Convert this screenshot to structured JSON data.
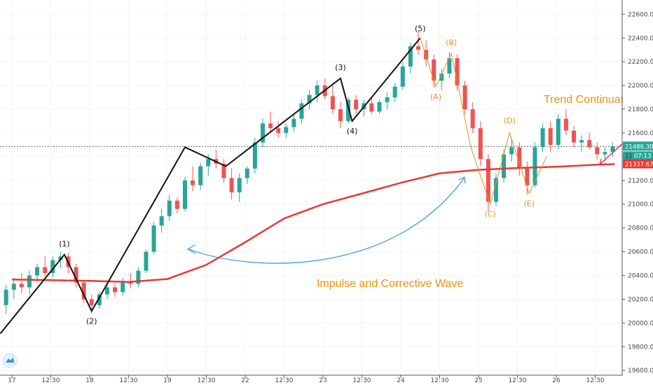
{
  "chart_data": {
    "type": "candlestick",
    "y_axis": {
      "ticks": [
        "22600.00",
        "22400.00",
        "22200.00",
        "22000.00",
        "21800.00",
        "21600.00",
        "21400.00",
        "21200.00",
        "21000.00",
        "20800.00",
        "20600.00",
        "20400.00",
        "20200.00",
        "20000.00",
        "19800.00",
        "19600.00"
      ],
      "tick_values": [
        22600,
        22400,
        22200,
        22000,
        21800,
        21600,
        21400,
        21200,
        21000,
        20800,
        20600,
        20400,
        20200,
        20000,
        19800,
        19600
      ],
      "ylim": [
        19560,
        22720
      ]
    },
    "x_axis": {
      "ticks": [
        "17",
        "12:30",
        "18",
        "12:30",
        "19",
        "12:30",
        "22",
        "12:30",
        "23",
        "12:30",
        "24",
        "12:30",
        "25",
        "12:30",
        "26",
        "12:30"
      ],
      "tick_positions": [
        0,
        1,
        2,
        3,
        4,
        5,
        6,
        7,
        8,
        9,
        10,
        11,
        12,
        13,
        14,
        15
      ]
    },
    "price_tags": {
      "last_price": "21486.30",
      "countdown": "07:13",
      "partial_label": "21",
      "ma_value": "21337.67"
    },
    "current_price": 21486.3,
    "ma_current": 21337.67,
    "moving_average": [
      [
        0,
        20366
      ],
      [
        1,
        20360
      ],
      [
        2,
        20355
      ],
      [
        3,
        20345
      ],
      [
        4,
        20370
      ],
      [
        5,
        20490
      ],
      [
        6,
        20680
      ],
      [
        7,
        20880
      ],
      [
        8,
        21000
      ],
      [
        9,
        21090
      ],
      [
        10,
        21180
      ],
      [
        11,
        21260
      ],
      [
        12,
        21290
      ],
      [
        13,
        21305
      ],
      [
        14,
        21315
      ],
      [
        15,
        21332
      ],
      [
        15.5,
        21337.67
      ]
    ],
    "impulse_wave": [
      [
        -0.3,
        19910
      ],
      [
        1.35,
        20575
      ],
      [
        2.05,
        20100
      ],
      [
        4.45,
        21480
      ],
      [
        5.5,
        21320
      ],
      [
        8.45,
        22060
      ],
      [
        8.75,
        21700
      ],
      [
        10.5,
        22400
      ]
    ],
    "correction_wave": [
      [
        10.5,
        22400
      ],
      [
        10.9,
        21990
      ],
      [
        11.3,
        22270
      ],
      [
        11.8,
        21480
      ],
      [
        12.3,
        21000
      ],
      [
        12.8,
        21600
      ],
      [
        13.3,
        21090
      ],
      [
        13.75,
        21400
      ]
    ],
    "wave_labels_black": [
      "(1)",
      "(2)",
      "(3)",
      "(4)",
      "(5)"
    ],
    "wave_labels_orange": [
      "(A)",
      "(B)",
      "(C)",
      "(D)",
      "(E)"
    ],
    "candles": [
      [
        -0.15,
        20150,
        20320,
        20080,
        20280
      ],
      [
        0.05,
        20280,
        20380,
        20200,
        20330
      ],
      [
        0.25,
        20330,
        20420,
        20250,
        20300
      ],
      [
        0.45,
        20300,
        20440,
        20240,
        20400
      ],
      [
        0.65,
        20400,
        20500,
        20340,
        20470
      ],
      [
        0.85,
        20470,
        20560,
        20390,
        20420
      ],
      [
        1.05,
        20420,
        20560,
        20380,
        20530
      ],
      [
        1.25,
        20530,
        20600,
        20460,
        20560
      ],
      [
        1.45,
        20560,
        20590,
        20420,
        20470
      ],
      [
        1.65,
        20470,
        20500,
        20300,
        20340
      ],
      [
        1.85,
        20340,
        20360,
        20170,
        20200
      ],
      [
        2.05,
        20200,
        20240,
        20080,
        20150
      ],
      [
        2.25,
        20150,
        20270,
        20120,
        20240
      ],
      [
        2.45,
        20240,
        20340,
        20200,
        20300
      ],
      [
        2.65,
        20300,
        20330,
        20220,
        20260
      ],
      [
        2.85,
        20260,
        20380,
        20230,
        20350
      ],
      [
        3.05,
        20350,
        20420,
        20290,
        20330
      ],
      [
        3.25,
        20330,
        20470,
        20300,
        20440
      ],
      [
        3.45,
        20440,
        20620,
        20420,
        20600
      ],
      [
        3.65,
        20600,
        20850,
        20580,
        20820
      ],
      [
        3.85,
        20820,
        20960,
        20760,
        20900
      ],
      [
        4.05,
        20900,
        21080,
        20860,
        21030
      ],
      [
        4.25,
        21030,
        21060,
        20920,
        20960
      ],
      [
        4.45,
        20960,
        21230,
        20940,
        21200
      ],
      [
        4.65,
        21200,
        21320,
        21110,
        21160
      ],
      [
        4.85,
        21160,
        21350,
        21120,
        21320
      ],
      [
        5.05,
        21320,
        21420,
        21240,
        21380
      ],
      [
        5.25,
        21380,
        21460,
        21300,
        21340
      ],
      [
        5.45,
        21340,
        21380,
        21180,
        21220
      ],
      [
        5.65,
        21220,
        21300,
        21040,
        21100
      ],
      [
        5.85,
        21100,
        21260,
        21020,
        21220
      ],
      [
        6.05,
        21220,
        21320,
        21170,
        21300
      ],
      [
        6.25,
        21300,
        21560,
        21260,
        21520
      ],
      [
        6.45,
        21520,
        21720,
        21480,
        21680
      ],
      [
        6.65,
        21680,
        21780,
        21600,
        21640
      ],
      [
        6.85,
        21640,
        21700,
        21560,
        21600
      ],
      [
        7.05,
        21600,
        21680,
        21560,
        21650
      ],
      [
        7.25,
        21650,
        21760,
        21610,
        21720
      ],
      [
        7.45,
        21720,
        21880,
        21680,
        21850
      ],
      [
        7.65,
        21850,
        21960,
        21800,
        21920
      ],
      [
        7.85,
        21920,
        22040,
        21860,
        22000
      ],
      [
        8.05,
        22000,
        22060,
        21880,
        21910
      ],
      [
        8.25,
        21910,
        22000,
        21760,
        21800
      ],
      [
        8.45,
        21800,
        21860,
        21640,
        21700
      ],
      [
        8.65,
        21700,
        21900,
        21680,
        21880
      ],
      [
        8.85,
        21880,
        21920,
        21760,
        21800
      ],
      [
        9.05,
        21800,
        21880,
        21740,
        21850
      ],
      [
        9.25,
        21850,
        21900,
        21760,
        21780
      ],
      [
        9.45,
        21780,
        21880,
        21760,
        21860
      ],
      [
        9.65,
        21860,
        21940,
        21800,
        21900
      ],
      [
        9.85,
        21900,
        22020,
        21860,
        21990
      ],
      [
        10.05,
        21990,
        22200,
        21960,
        22160
      ],
      [
        10.25,
        22160,
        22360,
        22100,
        22330
      ],
      [
        10.45,
        22330,
        22460,
        22260,
        22300
      ],
      [
        10.65,
        22300,
        22380,
        22160,
        22220
      ],
      [
        10.85,
        22220,
        22260,
        21980,
        22040
      ],
      [
        11.05,
        22040,
        22140,
        21960,
        22100
      ],
      [
        11.25,
        22100,
        22280,
        22060,
        22230
      ],
      [
        11.45,
        22230,
        22260,
        21960,
        22000
      ],
      [
        11.65,
        22000,
        22040,
        21760,
        21800
      ],
      [
        11.85,
        21800,
        21860,
        21600,
        21640
      ],
      [
        12.05,
        21640,
        21700,
        21320,
        21380
      ],
      [
        12.25,
        21380,
        21420,
        20940,
        21020
      ],
      [
        12.45,
        21020,
        21260,
        20980,
        21220
      ],
      [
        12.65,
        21220,
        21460,
        21180,
        21420
      ],
      [
        12.85,
        21420,
        21560,
        21360,
        21480
      ],
      [
        13.05,
        21480,
        21520,
        21240,
        21300
      ],
      [
        13.25,
        21300,
        21360,
        21080,
        21160
      ],
      [
        13.45,
        21160,
        21520,
        21140,
        21480
      ],
      [
        13.65,
        21480,
        21680,
        21440,
        21640
      ],
      [
        13.85,
        21640,
        21700,
        21440,
        21500
      ],
      [
        14.05,
        21500,
        21760,
        21460,
        21720
      ],
      [
        14.25,
        21720,
        21800,
        21580,
        21620
      ],
      [
        14.45,
        21620,
        21660,
        21480,
        21520
      ],
      [
        14.65,
        21520,
        21580,
        21440,
        21540
      ],
      [
        14.85,
        21540,
        21600,
        21460,
        21480
      ],
      [
        15.05,
        21480,
        21520,
        21380,
        21420
      ],
      [
        15.25,
        21420,
        21480,
        21360,
        21440
      ],
      [
        15.45,
        21440,
        21520,
        21400,
        21486
      ]
    ],
    "annotations": [
      "Impulse and Corrective Wave",
      "Trend Continuati"
    ],
    "grid": true
  }
}
